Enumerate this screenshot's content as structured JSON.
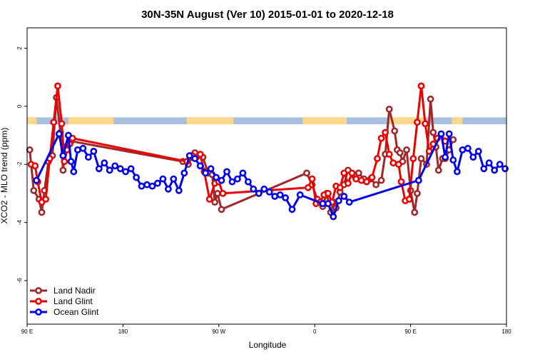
{
  "chart_data": {
    "type": "line",
    "title": "30N-35N August (Ver 10)   2015-01-01 to 2020-12-18",
    "xlabel": "Longitude",
    "ylabel": "XCO2 - MLO trend (ppm)",
    "xlim": [
      0,
      360
    ],
    "ylim": [
      -7.5,
      2.7
    ],
    "x_ticks": [
      {
        "value": 0,
        "label": "90 E"
      },
      {
        "value": 72,
        "label": "180"
      },
      {
        "value": 144,
        "label": "90 W"
      },
      {
        "value": 216,
        "label": "0"
      },
      {
        "value": 288,
        "label": "90 E"
      },
      {
        "value": 360,
        "label": "180"
      }
    ],
    "y_ticks": [
      {
        "value": 2,
        "label": "2"
      },
      {
        "value": 0,
        "label": "0"
      },
      {
        "value": -2,
        "label": "-2"
      },
      {
        "value": -4,
        "label": "-4"
      },
      {
        "value": -6,
        "label": "-6"
      }
    ],
    "land_band": {
      "y_range": [
        -0.62,
        -0.38
      ],
      "ocean_color": "#a9bfe0",
      "land_color": "#fcd98a",
      "land_segments": [
        [
          0,
          7
        ],
        [
          31,
          65
        ],
        [
          120,
          155
        ],
        [
          207,
          240
        ],
        [
          272,
          300
        ],
        [
          319,
          327
        ]
      ]
    },
    "series": [
      {
        "name": "Land Nadir",
        "color": "#a0282a",
        "x": [
          2,
          5,
          9,
          11,
          13,
          16,
          19,
          22,
          25,
          27,
          29,
          31,
          33,
          117,
          121,
          126,
          129,
          132,
          136,
          139,
          141,
          143,
          146,
          210,
          214,
          218,
          222,
          225,
          228,
          230,
          232,
          235,
          238,
          241,
          246,
          249,
          253,
          258,
          262,
          266,
          269,
          272,
          276,
          278,
          280,
          282,
          285,
          288,
          291,
          293,
          296,
          300,
          303,
          305,
          307,
          309,
          312,
          314,
          317,
          320
        ],
        "values": [
          -1.5,
          -2.9,
          -3.2,
          -3.65,
          -2.9,
          -1.9,
          -1.7,
          0.3,
          -0.9,
          -2.2,
          -1.4,
          -1.3,
          -1.2,
          -1.9,
          -2.0,
          -1.6,
          -1.7,
          -1.75,
          -2.3,
          -2.35,
          -3.3,
          -3.0,
          -3.55,
          -2.3,
          -2.7,
          -3.2,
          -3.45,
          -3.0,
          -3.65,
          -3.3,
          -3.5,
          -2.95,
          -2.7,
          -2.2,
          -2.4,
          -2.3,
          -2.5,
          -2.5,
          -2.7,
          -2.55,
          -1.65,
          -0.1,
          -0.85,
          -1.5,
          -1.6,
          -1.9,
          -1.5,
          -2.9,
          -3.65,
          -3.0,
          -1.8,
          -2.0,
          0.25,
          -0.9,
          -1.4,
          -2.2,
          -1.8,
          -1.8,
          -1.5,
          -1.15
        ]
      },
      {
        "name": "Land Glint",
        "color": "#ee0000",
        "x": [
          3,
          6,
          8,
          11,
          14,
          17,
          20,
          23,
          26,
          28,
          30,
          32,
          34,
          120,
          124,
          127,
          130,
          133,
          137,
          141,
          144,
          147,
          211,
          214,
          217,
          220,
          223,
          226,
          229,
          232,
          235,
          238,
          241,
          244,
          247,
          251,
          255,
          259,
          263,
          266,
          269,
          272,
          275,
          279,
          281,
          284,
          287,
          290,
          293,
          296,
          299,
          302,
          305,
          308,
          311,
          314
        ],
        "values": [
          -2.0,
          -2.05,
          -2.6,
          -3.3,
          -3.2,
          -1.8,
          -0.55,
          0.7,
          -0.6,
          -1.9,
          -1.5,
          -1.3,
          -1.1,
          -1.9,
          -1.7,
          -1.75,
          -1.65,
          -2.25,
          -3.2,
          -2.65,
          -2.6,
          -3.0,
          -2.8,
          -2.5,
          -3.35,
          -3.3,
          -3.05,
          -3.0,
          -3.3,
          -2.75,
          -2.8,
          -2.3,
          -2.65,
          -2.3,
          -2.5,
          -2.55,
          -2.6,
          -2.45,
          -1.8,
          -1.1,
          -0.9,
          -1.65,
          -1.95,
          -2.0,
          -2.6,
          -3.25,
          -3.2,
          -1.8,
          -0.55,
          0.7,
          -0.6,
          -1.55,
          -1.3,
          -1.1,
          -0.95,
          -1.2
        ]
      },
      {
        "name": "Ocean Glint",
        "color": "#0000ee",
        "x": [
          7,
          24,
          27,
          31,
          33,
          35,
          38,
          42,
          46,
          50,
          54,
          58,
          62,
          66,
          70,
          74,
          78,
          82,
          86,
          90,
          94,
          98,
          102,
          106,
          110,
          114,
          118,
          122,
          126,
          130,
          134,
          138,
          142,
          146,
          150,
          154,
          158,
          162,
          166,
          170,
          174,
          178,
          182,
          186,
          190,
          194,
          199,
          205,
          222,
          226,
          230,
          234,
          238,
          242,
          294,
          311,
          314,
          317,
          320,
          323,
          327,
          331,
          335,
          339,
          343,
          347,
          351,
          355,
          359
        ],
        "values": [
          -2.55,
          -0.95,
          -1.7,
          -1.0,
          -1.9,
          -2.25,
          -1.5,
          -1.45,
          -1.75,
          -1.55,
          -2.15,
          -1.95,
          -2.2,
          -2.05,
          -2.15,
          -2.25,
          -2.15,
          -2.45,
          -2.75,
          -2.7,
          -2.75,
          -2.65,
          -2.5,
          -2.85,
          -2.5,
          -2.9,
          -2.3,
          -1.7,
          -1.8,
          -2.05,
          -2.3,
          -2.15,
          -2.45,
          -2.55,
          -2.25,
          -2.6,
          -2.5,
          -2.3,
          -2.6,
          -2.85,
          -3.0,
          -2.85,
          -2.95,
          -3.1,
          -3.05,
          -3.15,
          -3.55,
          -3.05,
          -3.35,
          -3.35,
          -3.8,
          -3.25,
          -3.1,
          -3.3,
          -2.55,
          -0.95,
          -1.75,
          -0.95,
          -1.85,
          -2.25,
          -1.5,
          -1.45,
          -1.75,
          -1.55,
          -2.15,
          -1.95,
          -2.2,
          -2.0,
          -2.15
        ]
      }
    ],
    "legend": {
      "position": "bottom-left",
      "entries": [
        "Land Nadir",
        "Land Glint",
        "Ocean Glint"
      ]
    }
  }
}
